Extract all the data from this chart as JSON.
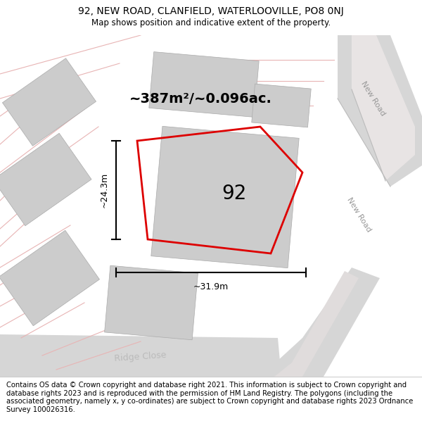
{
  "title_line1": "92, NEW ROAD, CLANFIELD, WATERLOOVILLE, PO8 0NJ",
  "title_line2": "Map shows position and indicative extent of the property.",
  "footer": "Contains OS data © Crown copyright and database right 2021. This information is subject to Crown copyright and database rights 2023 and is reproduced with the permission of HM Land Registry. The polygons (including the associated geometry, namely x, y co-ordinates) are subject to Crown copyright and database rights 2023 Ordnance Survey 100026316.",
  "area_label": "~387m²/~0.096ac.",
  "number_label": "92",
  "dim_height": "~24.3m",
  "dim_width": "~31.9m",
  "road_label_1": "New Road",
  "road_label_2": "New Road",
  "road_label_bottom": "Ridge Close",
  "map_bg": "#f2eeee",
  "plot_color": "#dd0000",
  "building_color": "#cccccc",
  "road_fill_color": "#d6d6d6",
  "road_line_color": "#e8b4b4",
  "title_fontsize": 10,
  "footer_fontsize": 7.2
}
